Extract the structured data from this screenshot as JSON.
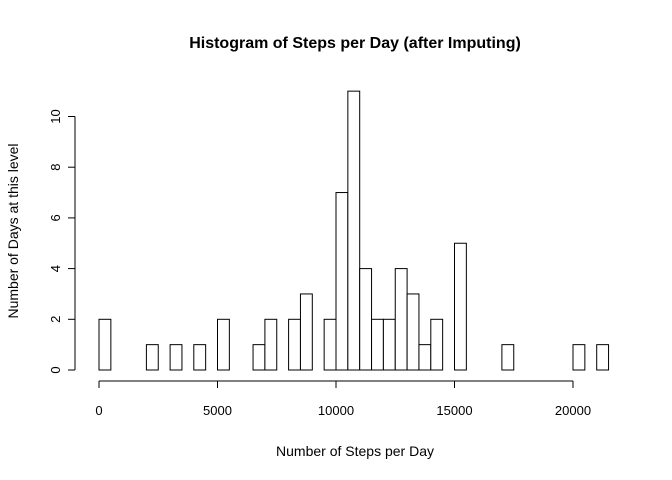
{
  "chart_data": {
    "type": "bar",
    "title": "Histogram of Steps per Day (after Imputing)",
    "xlabel": "Number of Steps per Day",
    "ylabel": "Number of Days at this level",
    "bin_width": 500,
    "bin_starts": [
      0,
      500,
      1000,
      1500,
      2000,
      2500,
      3000,
      3500,
      4000,
      4500,
      5000,
      5500,
      6000,
      6500,
      7000,
      7500,
      8000,
      8500,
      9000,
      9500,
      10000,
      10500,
      11000,
      11500,
      12000,
      12500,
      13000,
      13500,
      14000,
      14500,
      15000,
      15500,
      16000,
      16500,
      17000,
      17500,
      18000,
      18500,
      19000,
      19500,
      20000,
      20500,
      21000
    ],
    "values": [
      2,
      0,
      0,
      0,
      1,
      0,
      1,
      0,
      1,
      0,
      2,
      0,
      0,
      1,
      2,
      0,
      2,
      3,
      0,
      2,
      7,
      11,
      4,
      2,
      2,
      4,
      3,
      1,
      2,
      0,
      5,
      0,
      0,
      0,
      1,
      0,
      0,
      0,
      0,
      0,
      1,
      0,
      1
    ],
    "xlim": [
      0,
      21500
    ],
    "ylim": [
      0,
      11
    ],
    "x_ticks": [
      0,
      5000,
      10000,
      15000,
      20000
    ],
    "x_tick_labels": [
      "0",
      "5000",
      "10000",
      "15000",
      "20000"
    ],
    "y_ticks": [
      0,
      2,
      4,
      6,
      8,
      10
    ],
    "y_tick_labels": [
      "0",
      "2",
      "4",
      "6",
      "8",
      "10"
    ],
    "bar_fill": "#ffffff",
    "bar_stroke": "#000000",
    "grid": false,
    "legend": "none"
  }
}
